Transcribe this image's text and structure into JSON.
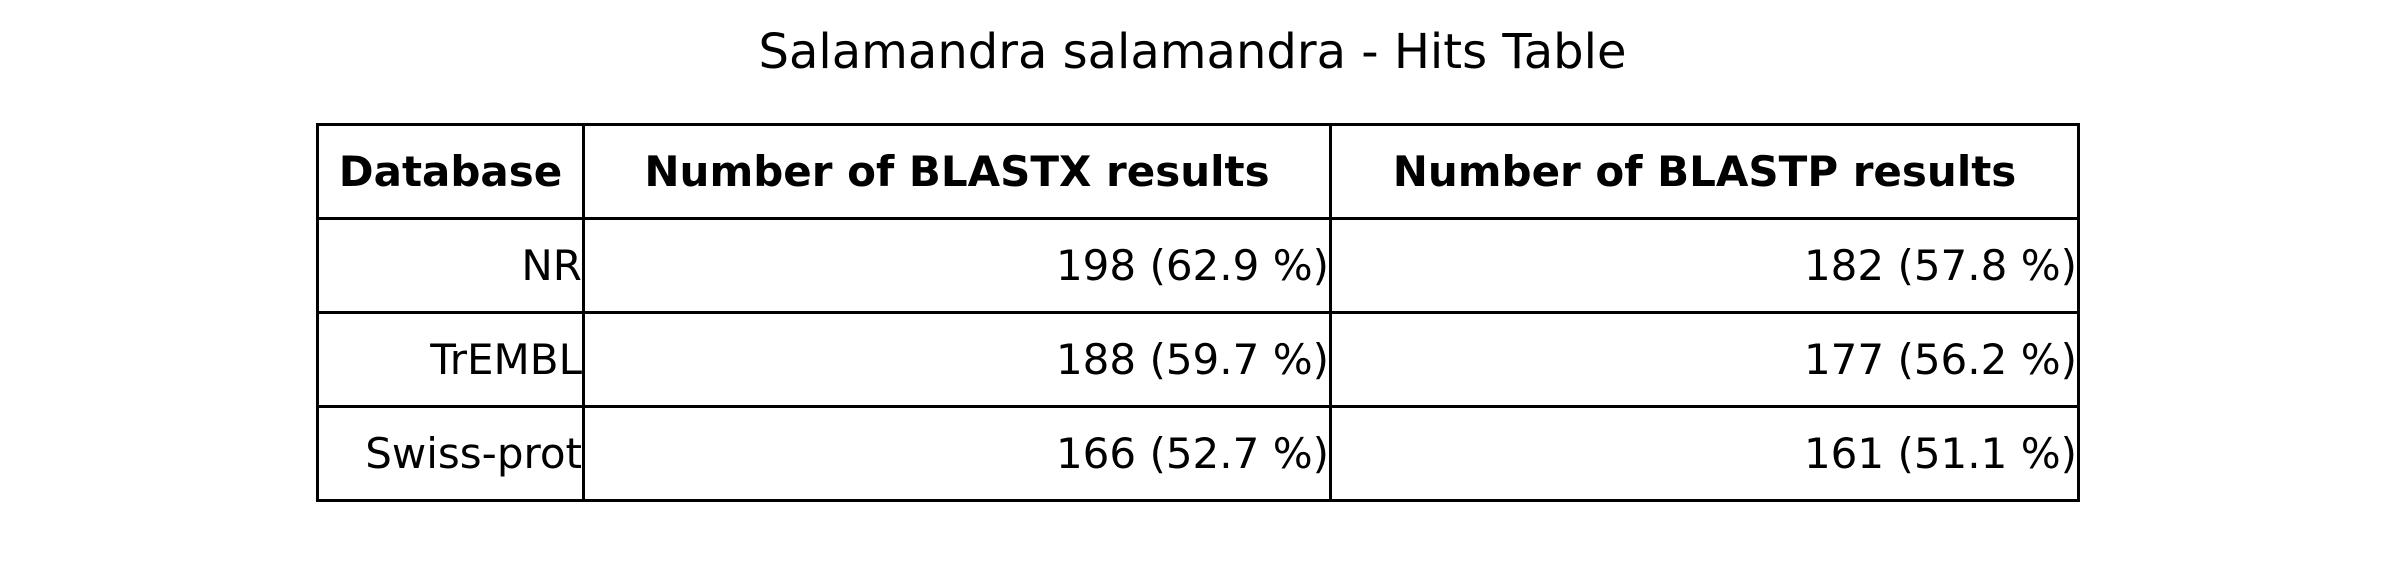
{
  "chart_data": {
    "type": "table",
    "title": "Salamandra salamandra - Hits Table",
    "columns": [
      "Database",
      "Number of BLASTX results",
      "Number of BLASTP results"
    ],
    "rows": [
      [
        "NR",
        "198 (62.9 %)",
        "182 (57.8 %)"
      ],
      [
        "TrEMBL",
        "188 (59.7 %)",
        "177 (56.2 %)"
      ],
      [
        "Swiss-prot",
        "166 (52.7 %)",
        "161 (51.1 %)"
      ]
    ]
  }
}
